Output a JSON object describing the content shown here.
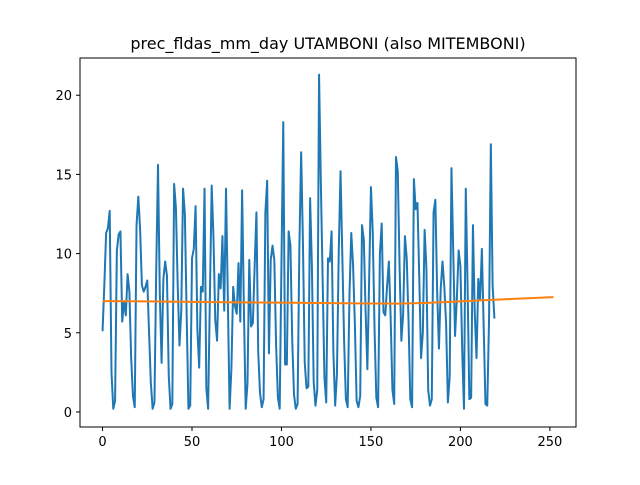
{
  "chart_data": {
    "type": "line",
    "title": "prec_fldas_mm_day UTAMBONI (also MITEMBONI)",
    "xlabel": "",
    "ylabel": "",
    "xlim": [
      -12.6,
      264.6
    ],
    "ylim": [
      -0.95,
      22.35
    ],
    "x_ticks": [
      0,
      50,
      100,
      150,
      200,
      250
    ],
    "y_ticks": [
      0,
      5,
      10,
      15,
      20
    ],
    "grid": false,
    "legend": "none",
    "series": [
      {
        "color": "#1f77b4",
        "x_start": 0,
        "x_step": 1,
        "values": [
          5.1,
          8.0,
          11.3,
          11.6,
          12.7,
          2.5,
          0.2,
          0.7,
          10.2,
          11.2,
          11.4,
          5.7,
          7.0,
          6.1,
          8.7,
          7.6,
          3.4,
          1.0,
          0.3,
          11.8,
          13.6,
          11.5,
          8.0,
          7.6,
          7.9,
          8.3,
          5.0,
          1.8,
          0.2,
          0.6,
          9.0,
          15.6,
          7.5,
          3.1,
          8.4,
          9.5,
          8.6,
          2.3,
          0.2,
          0.5,
          14.4,
          12.9,
          8.0,
          4.2,
          6.4,
          14.1,
          12.5,
          6.2,
          0.2,
          0.4,
          9.7,
          10.3,
          13.0,
          5.2,
          2.8,
          7.9,
          7.6,
          14.1,
          1.5,
          0.2,
          7.3,
          14.3,
          11.0,
          5.8,
          4.5,
          8.7,
          7.8,
          11.1,
          6.4,
          14.1,
          7.3,
          0.2,
          2.7,
          7.9,
          6.7,
          6.2,
          9.4,
          5.7,
          14.0,
          6.5,
          0.2,
          1.8,
          9.6,
          5.4,
          5.6,
          9.2,
          12.6,
          3.8,
          1.2,
          0.3,
          0.8,
          12.6,
          14.6,
          3.7,
          9.6,
          10.5,
          9.6,
          4.2,
          0.9,
          0.2,
          9.5,
          18.3,
          3.0,
          3.0,
          11.4,
          10.5,
          4.6,
          1.1,
          0.2,
          0.5,
          10.4,
          16.4,
          10.6,
          3.1,
          1.5,
          1.6,
          13.5,
          9.2,
          1.9,
          0.4,
          1.4,
          21.3,
          14.5,
          8.4,
          2.2,
          0.6,
          9.7,
          9.5,
          11.4,
          3.8,
          0.4,
          2.4,
          10.1,
          15.2,
          9.9,
          4.5,
          0.8,
          0.3,
          7.4,
          11.3,
          9.3,
          5.6,
          0.7,
          0.3,
          1.0,
          11.8,
          10.9,
          6.4,
          2.7,
          8.4,
          14.2,
          11.4,
          5.3,
          0.9,
          0.3,
          10.0,
          11.9,
          6.3,
          6.1,
          7.9,
          9.5,
          6.0,
          1.4,
          0.5,
          16.1,
          15.2,
          9.2,
          4.5,
          6.2,
          11.1,
          9.7,
          5.8,
          0.8,
          0.3,
          14.7,
          12.8,
          13.2,
          8.5,
          3.4,
          5.0,
          11.5,
          9.1,
          1.4,
          0.4,
          0.8,
          12.6,
          13.4,
          7.6,
          4.0,
          7.8,
          9.5,
          7.9,
          5.6,
          0.6,
          2.2,
          15.4,
          10.1,
          4.8,
          7.1,
          10.2,
          9.2,
          3.9,
          0.2,
          14.1,
          8.0,
          0.8,
          0.9,
          11.8,
          6.3,
          3.4,
          8.4,
          7.1,
          10.3,
          5.4,
          0.5,
          0.4,
          5.8,
          16.9,
          8.0,
          5.9
        ]
      },
      {
        "color": "#ff7f0e",
        "points": [
          [
            0,
            7.0
          ],
          [
            25,
            6.98
          ],
          [
            50,
            6.95
          ],
          [
            75,
            6.92
          ],
          [
            100,
            6.9
          ],
          [
            125,
            6.87
          ],
          [
            150,
            6.85
          ],
          [
            165,
            6.84
          ],
          [
            180,
            6.88
          ],
          [
            200,
            6.98
          ],
          [
            225,
            7.12
          ],
          [
            252,
            7.25
          ]
        ]
      }
    ]
  }
}
